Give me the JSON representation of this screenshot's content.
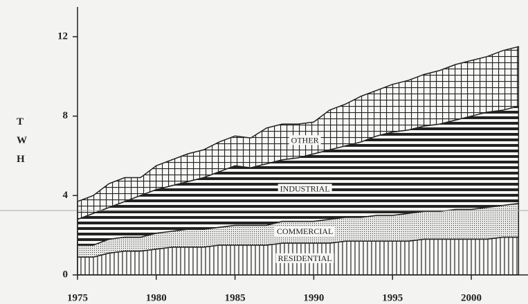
{
  "chart_data": {
    "type": "stacked_area",
    "ylabel": "TWH",
    "x": [
      1975,
      1976,
      1977,
      1978,
      1979,
      1980,
      1981,
      1982,
      1983,
      1984,
      1985,
      1986,
      1987,
      1988,
      1989,
      1990,
      1991,
      1992,
      1993,
      1994,
      1995,
      1996,
      1997,
      1998,
      1999,
      2000,
      2001,
      2002,
      2003
    ],
    "series": [
      {
        "name": "RESIDENTIAL",
        "color": "#222222",
        "values": [
          0.9,
          0.9,
          1.1,
          1.2,
          1.2,
          1.3,
          1.4,
          1.4,
          1.4,
          1.5,
          1.5,
          1.5,
          1.5,
          1.6,
          1.6,
          1.6,
          1.6,
          1.7,
          1.7,
          1.7,
          1.7,
          1.7,
          1.8,
          1.8,
          1.8,
          1.8,
          1.8,
          1.9,
          1.9
        ]
      },
      {
        "name": "COMMERCIAL",
        "color": "#222222",
        "values": [
          0.6,
          0.6,
          0.7,
          0.7,
          0.7,
          0.8,
          0.8,
          0.9,
          0.9,
          0.9,
          1.0,
          1.0,
          1.0,
          1.1,
          1.1,
          1.1,
          1.2,
          1.2,
          1.2,
          1.3,
          1.3,
          1.4,
          1.4,
          1.4,
          1.5,
          1.5,
          1.6,
          1.6,
          1.7
        ]
      },
      {
        "name": "INDUSTRIAL",
        "color": "#222222",
        "values": [
          1.3,
          1.6,
          1.6,
          1.8,
          2.1,
          2.2,
          2.3,
          2.4,
          2.6,
          2.8,
          3.0,
          2.9,
          3.1,
          3.1,
          3.2,
          3.4,
          3.5,
          3.6,
          3.8,
          4.0,
          4.2,
          4.2,
          4.3,
          4.4,
          4.5,
          4.7,
          4.8,
          4.8,
          4.9
        ]
      },
      {
        "name": "OTHER",
        "color": "#222222",
        "values": [
          0.9,
          0.9,
          1.2,
          1.2,
          0.9,
          1.2,
          1.3,
          1.4,
          1.4,
          1.5,
          1.5,
          1.5,
          1.8,
          1.8,
          1.7,
          1.6,
          2.0,
          2.1,
          2.3,
          2.3,
          2.4,
          2.5,
          2.6,
          2.7,
          2.8,
          2.8,
          2.8,
          3.0,
          3.0
        ]
      }
    ],
    "xlim": [
      1975,
      2003.6
    ],
    "xticks": [
      1975,
      1980,
      1985,
      1990,
      1995,
      2000
    ],
    "ylim": [
      0,
      13.5
    ],
    "yticks": [
      0,
      4,
      8,
      12
    ]
  }
}
